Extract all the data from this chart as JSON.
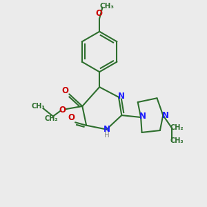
{
  "bg_color": "#ebebeb",
  "bond_color": "#2d6e2d",
  "n_color": "#1a1aff",
  "o_color": "#cc0000",
  "h_color": "#888888",
  "line_width": 1.5,
  "figsize": [
    3.0,
    3.0
  ],
  "dpi": 100,
  "xlim": [
    0,
    10
  ],
  "ylim": [
    0,
    10
  ]
}
